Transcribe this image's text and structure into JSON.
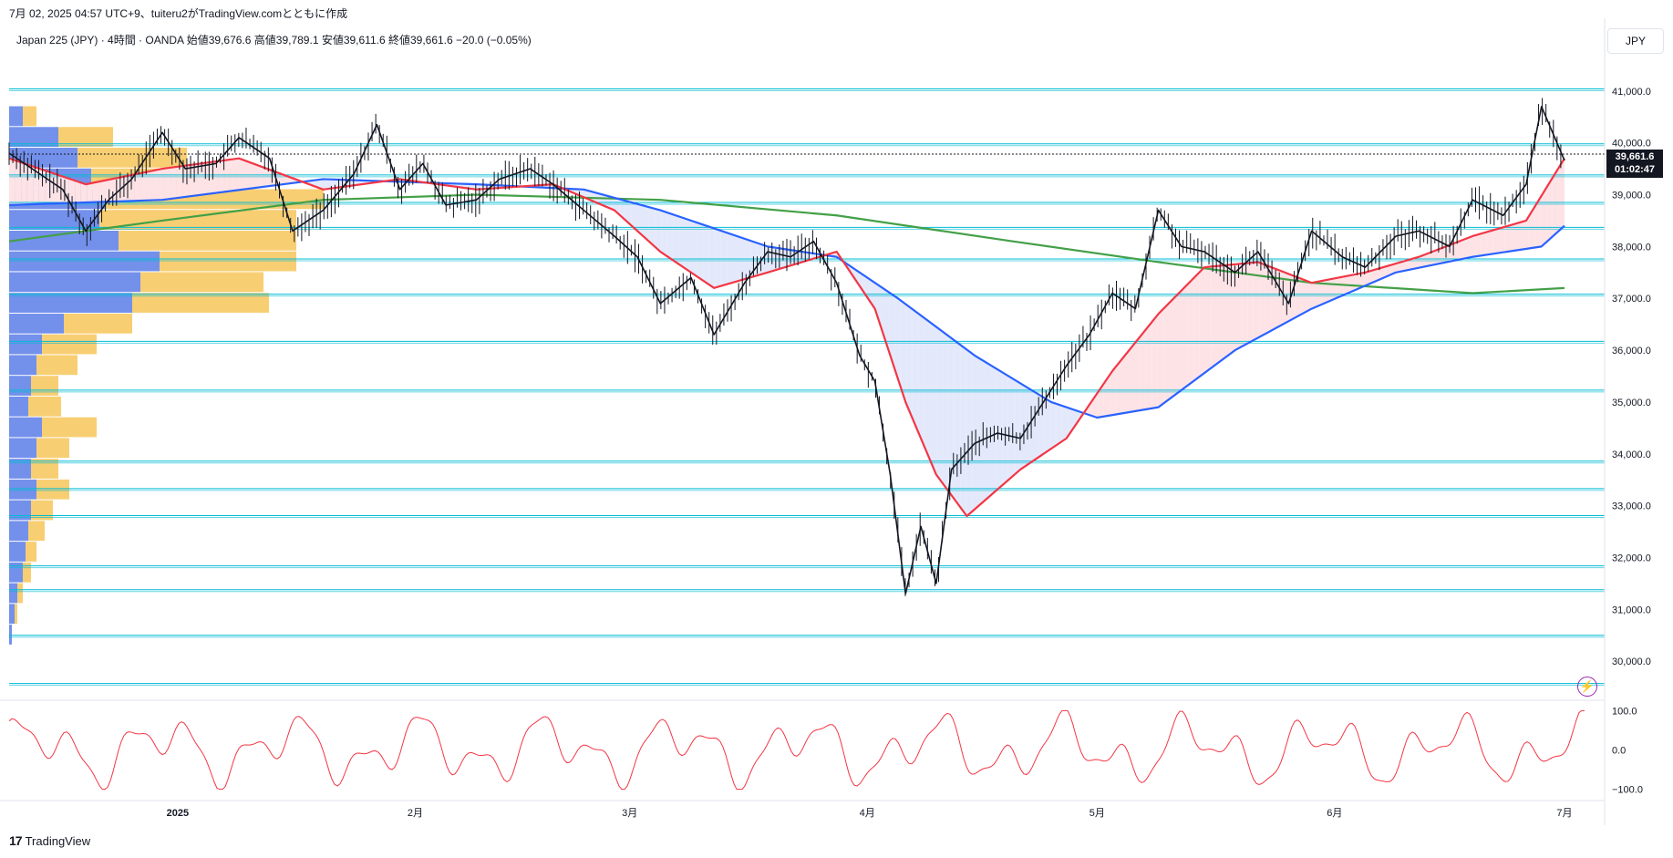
{
  "header": {
    "published": "7月 02, 2025 04:57 UTC+9、tuiteru2がTradingView.comとともに作成",
    "symbol_line": "Japan 225 (JPY) · 4時間 · OANDA  始値39,676.6  高値39,789.1  安値39,611.6  終値39,661.6  −20.0 (−0.05%)"
  },
  "currency_button": "JPY",
  "current_price": {
    "value": "39,661.6",
    "countdown": "01:02:47"
  },
  "footer_logo": "TradingView",
  "colors": {
    "candle": "#131722",
    "sma_fast": "#f23645",
    "sma_mid": "#2962ff",
    "sma_slow": "#43a047",
    "hline": "#00bcd4",
    "vp_up": "#5b7ce8",
    "vp_down": "#f7c65b",
    "oscillator": "#f23645",
    "fill_up": "#fde3e6",
    "fill_down": "#e3e9fb"
  },
  "icons": [
    "lightning-icon",
    "tradingview-logo-icon"
  ],
  "chart_data": {
    "type": "line",
    "price_axis": {
      "ticks": [
        "41,000.0",
        "40,000.0",
        "39,000.0",
        "38,000.0",
        "37,000.0",
        "36,000.0",
        "35,000.0",
        "34,000.0",
        "33,000.0",
        "32,000.0",
        "31,000.0",
        "30,000.0"
      ],
      "values": [
        41000,
        40000,
        39000,
        38000,
        37000,
        36000,
        35000,
        34000,
        33000,
        32000,
        31000,
        30000
      ],
      "ylim": [
        29300,
        41700
      ]
    },
    "time_axis": {
      "labels": [
        "2025",
        "2月",
        "3月",
        "4月",
        "5月",
        "6月",
        "7月"
      ],
      "label_dates": [
        "2025-01-01",
        "2025-02-01",
        "2025-03-01",
        "2025-04-01",
        "2025-05-01",
        "2025-06-01",
        "2025-07-01"
      ],
      "xlim": [
        "2024-12-10",
        "2025-07-06"
      ]
    },
    "horizontal_levels": [
      41040,
      39980,
      39380,
      38850,
      38370,
      37760,
      37080,
      36170,
      35230,
      33860,
      33330,
      32810,
      31840,
      31380,
      30500,
      29570
    ],
    "price_series": {
      "name": "Japan 225",
      "x": [
        "2024-12-10",
        "2024-12-14",
        "2024-12-17",
        "2024-12-20",
        "2024-12-23",
        "2024-12-26",
        "2024-12-30",
        "2025-01-02",
        "2025-01-06",
        "2025-01-09",
        "2025-01-13",
        "2025-01-16",
        "2025-01-20",
        "2025-01-24",
        "2025-01-27",
        "2025-01-30",
        "2025-02-02",
        "2025-02-05",
        "2025-02-09",
        "2025-02-12",
        "2025-02-16",
        "2025-02-19",
        "2025-02-23",
        "2025-02-27",
        "2025-03-02",
        "2025-03-05",
        "2025-03-09",
        "2025-03-12",
        "2025-03-16",
        "2025-03-19",
        "2025-03-22",
        "2025-03-25",
        "2025-03-28",
        "2025-03-31",
        "2025-04-02",
        "2025-04-04",
        "2025-04-06",
        "2025-04-08",
        "2025-04-10",
        "2025-04-12",
        "2025-04-15",
        "2025-04-18",
        "2025-04-21",
        "2025-04-24",
        "2025-04-27",
        "2025-04-30",
        "2025-05-03",
        "2025-05-06",
        "2025-05-09",
        "2025-05-12",
        "2025-05-15",
        "2025-05-19",
        "2025-05-22",
        "2025-05-26",
        "2025-05-29",
        "2025-06-02",
        "2025-06-05",
        "2025-06-09",
        "2025-06-12",
        "2025-06-16",
        "2025-06-19",
        "2025-06-23",
        "2025-06-26",
        "2025-06-28",
        "2025-07-01"
      ],
      "y": [
        39800,
        39400,
        39100,
        38300,
        38900,
        39300,
        40200,
        39500,
        39600,
        40100,
        39700,
        38300,
        38700,
        39400,
        40350,
        39100,
        39600,
        38800,
        38900,
        39300,
        39500,
        39200,
        38700,
        38200,
        37800,
        36900,
        37400,
        36300,
        37300,
        37900,
        37800,
        38100,
        37300,
        35900,
        35400,
        33600,
        31300,
        32600,
        31500,
        33700,
        34200,
        34400,
        34300,
        35000,
        35700,
        36300,
        37100,
        36800,
        38700,
        38000,
        37900,
        37500,
        37900,
        36900,
        38300,
        37800,
        37600,
        38200,
        38300,
        38000,
        38900,
        38600,
        39200,
        40700,
        39660
      ]
    },
    "sma_fast": {
      "x": [
        "2024-12-10",
        "2024-12-20",
        "2024-12-30",
        "2025-01-09",
        "2025-01-20",
        "2025-01-30",
        "2025-02-09",
        "2025-02-19",
        "2025-02-27",
        "2025-03-05",
        "2025-03-12",
        "2025-03-19",
        "2025-03-28",
        "2025-04-02",
        "2025-04-06",
        "2025-04-10",
        "2025-04-14",
        "2025-04-21",
        "2025-04-27",
        "2025-05-03",
        "2025-05-09",
        "2025-05-15",
        "2025-05-22",
        "2025-05-29",
        "2025-06-05",
        "2025-06-12",
        "2025-06-19",
        "2025-06-26",
        "2025-07-01"
      ],
      "y": [
        39700,
        39200,
        39500,
        39700,
        39100,
        39300,
        39100,
        39200,
        38700,
        37900,
        37200,
        37500,
        37900,
        36800,
        35000,
        33600,
        32800,
        33700,
        34300,
        35600,
        36700,
        37600,
        37700,
        37300,
        37500,
        37800,
        38200,
        38500,
        39700
      ]
    },
    "sma_mid": {
      "x": [
        "2024-12-10",
        "2024-12-30",
        "2025-01-20",
        "2025-02-09",
        "2025-02-23",
        "2025-03-05",
        "2025-03-19",
        "2025-03-28",
        "2025-04-05",
        "2025-04-15",
        "2025-04-25",
        "2025-05-01",
        "2025-05-09",
        "2025-05-19",
        "2025-05-29",
        "2025-06-09",
        "2025-06-19",
        "2025-06-28",
        "2025-07-01"
      ],
      "y": [
        38800,
        38900,
        39300,
        39200,
        39100,
        38700,
        38000,
        37800,
        37000,
        35900,
        35000,
        34700,
        34900,
        36000,
        36800,
        37500,
        37800,
        38000,
        38400
      ]
    },
    "sma_slow": {
      "x": [
        "2024-12-10",
        "2024-12-30",
        "2025-01-20",
        "2025-02-09",
        "2025-03-05",
        "2025-03-28",
        "2025-04-20",
        "2025-05-09",
        "2025-05-29",
        "2025-06-19",
        "2025-07-01"
      ],
      "y": [
        38100,
        38500,
        38900,
        39000,
        38900,
        38600,
        38100,
        37700,
        37300,
        37100,
        37200
      ]
    },
    "volume_profile": {
      "note_levels": [
        40600,
        40200,
        39800,
        39400,
        39000,
        38600,
        38200,
        37800,
        37400,
        37000,
        36600,
        36200,
        35800,
        35400,
        35000,
        34600,
        34200,
        33800,
        33400,
        33000,
        32600,
        32200,
        31800,
        31400,
        31000,
        30600
      ],
      "up": [
        0.05,
        0.18,
        0.25,
        0.3,
        0.35,
        0.33,
        0.4,
        0.55,
        0.48,
        0.45,
        0.2,
        0.12,
        0.1,
        0.08,
        0.07,
        0.12,
        0.1,
        0.08,
        0.1,
        0.08,
        0.07,
        0.06,
        0.05,
        0.03,
        0.02,
        0.01
      ],
      "down": [
        0.05,
        0.2,
        0.4,
        0.6,
        0.8,
        0.72,
        0.65,
        0.5,
        0.45,
        0.5,
        0.25,
        0.2,
        0.15,
        0.1,
        0.12,
        0.2,
        0.12,
        0.1,
        0.12,
        0.08,
        0.06,
        0.04,
        0.03,
        0.02,
        0.01,
        0.0
      ]
    },
    "oscillator": {
      "axis_ticks": [
        "100.0",
        "0.0",
        "−100.0"
      ],
      "axis_values": [
        100,
        0,
        -100
      ],
      "ylim": [
        -110,
        110
      ]
    }
  }
}
